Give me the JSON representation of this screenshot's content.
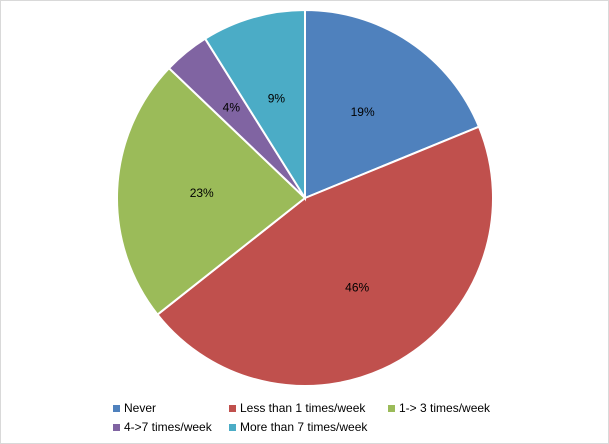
{
  "chart_data": {
    "type": "pie",
    "categories": [
      "Never",
      "Less than 1 times/week",
      "1-> 3 times/week",
      "4->7 times/week",
      "More than 7 times/week"
    ],
    "values": [
      19,
      46,
      23,
      4,
      9
    ],
    "data_labels": [
      "19%",
      "46%",
      "23%",
      "4%",
      "9%"
    ],
    "colors": [
      "#4f81bd",
      "#c0504d",
      "#9bbb59",
      "#8064a2",
      "#4bacc6"
    ],
    "start_angle_deg": 0,
    "direction": "clockwise",
    "slice_border_color": "#ffffff",
    "legend_position": "bottom",
    "title": ""
  }
}
